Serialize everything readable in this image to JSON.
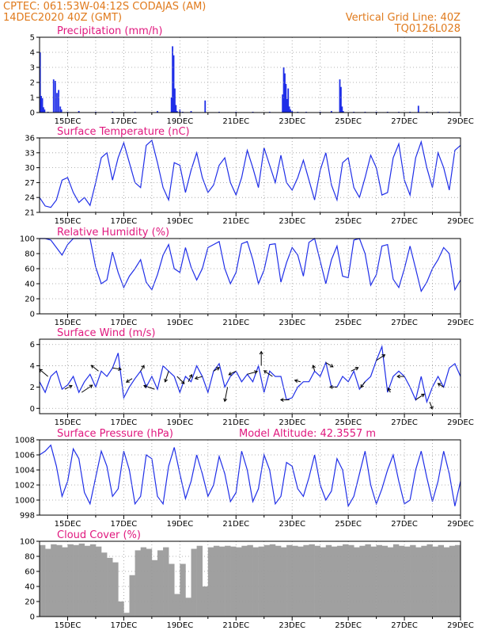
{
  "header": {
    "line1_left": "CPTEC:   061:53W-04:12S   CODAJAS (AM)",
    "line2_left": "14DEC2020 40Z (GMT)",
    "line2_right": "Vertical Grid Line: 40Z",
    "line3_right": "TQ0126L028"
  },
  "colors": {
    "header": "#e07a1c",
    "title": "#e0187e",
    "series": "#1f2ee8",
    "cloud": "#a0a0a0",
    "grid": "#9a9a9a"
  },
  "chart_data": [
    {
      "type": "bar",
      "title": "Precipitation (mm/h)",
      "xlabel": "",
      "ylabel": "",
      "xticks": [
        "15DEC",
        "17DEC",
        "19DEC",
        "21DEC",
        "23DEC",
        "25DEC",
        "27DEC",
        "29DEC"
      ],
      "xlim": [
        14.0,
        29.0
      ],
      "ylim": [
        0,
        5
      ],
      "yticks": [
        0,
        1,
        2,
        3,
        4,
        5
      ],
      "x": [
        14.02,
        14.06,
        14.1,
        14.14,
        14.18,
        14.3,
        14.5,
        14.56,
        14.62,
        14.68,
        14.74,
        14.78,
        15.0,
        15.4,
        16.0,
        16.6,
        17.4,
        18.2,
        18.7,
        18.74,
        18.78,
        18.82,
        18.86,
        18.9,
        19.0,
        19.1,
        19.4,
        19.9,
        20.4,
        21.0,
        21.6,
        22.2,
        22.66,
        22.7,
        22.74,
        22.78,
        22.82,
        22.86,
        22.9,
        22.94,
        23.0,
        23.2,
        23.5,
        24.0,
        24.4,
        24.7,
        24.74,
        24.78,
        24.82,
        25.2,
        25.6,
        26.0,
        26.4,
        26.8,
        27.2,
        27.5,
        27.8,
        28.2,
        28.6
      ],
      "values": [
        4.0,
        1.1,
        0.95,
        0.35,
        0.2,
        0.05,
        2.2,
        2.1,
        1.3,
        1.5,
        0.4,
        0.2,
        0.05,
        0.1,
        0.05,
        0.05,
        0.05,
        0.1,
        1.0,
        4.4,
        3.8,
        1.6,
        0.5,
        0.1,
        0.2,
        0.05,
        0.1,
        0.8,
        0.05,
        0.05,
        0.05,
        0.05,
        1.2,
        3.0,
        2.6,
        1.9,
        0.9,
        1.6,
        0.4,
        0.2,
        0.1,
        0.05,
        0.05,
        0.05,
        0.1,
        2.2,
        1.7,
        0.4,
        0.1,
        0.05,
        0.05,
        0.05,
        0.05,
        0.05,
        0.05,
        0.45,
        0.05,
        0.05,
        0.05
      ]
    },
    {
      "type": "line",
      "title": "Surface Temperature (nC)",
      "xlabel": "",
      "ylabel": "",
      "xticks": [
        "15DEC",
        "17DEC",
        "19DEC",
        "21DEC",
        "23DEC",
        "25DEC",
        "27DEC",
        "29DEC"
      ],
      "xlim": [
        14.0,
        29.0
      ],
      "ylim": [
        21,
        36
      ],
      "yticks": [
        21,
        24,
        27,
        30,
        33,
        36
      ],
      "x": [
        14.0,
        14.2,
        14.4,
        14.6,
        14.8,
        15.0,
        15.2,
        15.4,
        15.6,
        15.8,
        16.0,
        16.2,
        16.4,
        16.6,
        16.8,
        17.0,
        17.2,
        17.4,
        17.6,
        17.8,
        18.0,
        18.2,
        18.4,
        18.6,
        18.8,
        19.0,
        19.2,
        19.4,
        19.6,
        19.8,
        20.0,
        20.2,
        20.4,
        20.6,
        20.8,
        21.0,
        21.2,
        21.4,
        21.6,
        21.8,
        22.0,
        22.2,
        22.4,
        22.6,
        22.8,
        23.0,
        23.2,
        23.4,
        23.6,
        23.8,
        24.0,
        24.2,
        24.4,
        24.6,
        24.8,
        25.0,
        25.2,
        25.4,
        25.6,
        25.8,
        26.0,
        26.2,
        26.4,
        26.6,
        26.8,
        27.0,
        27.2,
        27.4,
        27.6,
        27.8,
        28.0,
        28.2,
        28.4,
        28.6,
        28.8,
        29.0
      ],
      "series": [
        {
          "name": "",
          "values": [
            24,
            22.3,
            22,
            23.5,
            27.5,
            28,
            25,
            23,
            24,
            22.4,
            27,
            32,
            33,
            27.5,
            32,
            35,
            31,
            27,
            26,
            34.5,
            35.5,
            31,
            26,
            23.5,
            31,
            30.5,
            25,
            29.5,
            33,
            28,
            25,
            26.5,
            30.5,
            32,
            27,
            24.5,
            28,
            33.5,
            30,
            26,
            34,
            30.5,
            27,
            32.5,
            27,
            25.5,
            28,
            31.5,
            27.5,
            23.5,
            29.5,
            33,
            26.5,
            23.5,
            31,
            32,
            26,
            24,
            28,
            32.5,
            30,
            24.5,
            25,
            32,
            34.8,
            27.5,
            24.5,
            32,
            35.2,
            30,
            26,
            33,
            30,
            25.5,
            33.5,
            34.5
          ]
        }
      ]
    },
    {
      "type": "line",
      "title": "Relative Humidity (%)",
      "xlabel": "",
      "ylabel": "",
      "xticks": [
        "15DEC",
        "17DEC",
        "19DEC",
        "21DEC",
        "23DEC",
        "25DEC",
        "27DEC",
        "29DEC"
      ],
      "xlim": [
        14.0,
        29.0
      ],
      "ylim": [
        0,
        100
      ],
      "yticks": [
        0,
        20,
        40,
        60,
        80,
        100
      ],
      "x": [
        14.0,
        14.2,
        14.4,
        14.6,
        14.8,
        15.0,
        15.2,
        15.4,
        15.6,
        15.8,
        16.0,
        16.2,
        16.4,
        16.6,
        16.8,
        17.0,
        17.2,
        17.4,
        17.6,
        17.8,
        18.0,
        18.2,
        18.4,
        18.6,
        18.8,
        19.0,
        19.2,
        19.4,
        19.6,
        19.8,
        20.0,
        20.2,
        20.4,
        20.6,
        20.8,
        21.0,
        21.2,
        21.4,
        21.6,
        21.8,
        22.0,
        22.2,
        22.4,
        22.6,
        22.8,
        23.0,
        23.2,
        23.4,
        23.6,
        23.8,
        24.0,
        24.2,
        24.4,
        24.6,
        24.8,
        25.0,
        25.2,
        25.4,
        25.6,
        25.8,
        26.0,
        26.2,
        26.4,
        26.6,
        26.8,
        27.0,
        27.2,
        27.4,
        27.6,
        27.8,
        28.0,
        28.2,
        28.4,
        28.6,
        28.8,
        29.0
      ],
      "series": [
        {
          "name": "",
          "values": [
            100,
            100,
            98,
            88,
            78,
            92,
            100,
            100,
            100,
            100,
            62,
            40,
            45,
            82,
            55,
            35,
            50,
            60,
            72,
            42,
            32,
            52,
            78,
            92,
            60,
            55,
            88,
            62,
            45,
            60,
            88,
            92,
            96,
            60,
            40,
            55,
            93,
            96,
            72,
            40,
            58,
            92,
            93,
            42,
            68,
            88,
            78,
            50,
            95,
            100,
            70,
            40,
            72,
            90,
            50,
            48,
            98,
            100,
            80,
            38,
            52,
            90,
            92,
            46,
            35,
            60,
            90,
            60,
            30,
            42,
            60,
            72,
            88,
            80,
            32,
            45
          ]
        }
      ]
    },
    {
      "type": "line",
      "title": "Surface Wind (m/s)",
      "xlabel": "",
      "ylabel": "",
      "xticks": [
        "15DEC",
        "17DEC",
        "19DEC",
        "21DEC",
        "23DEC",
        "25DEC",
        "27DEC",
        "29DEC"
      ],
      "xlim": [
        14.0,
        29.0
      ],
      "ylim": [
        -0.5,
        6.5
      ],
      "yticks": [
        0,
        2,
        4,
        6
      ],
      "x": [
        14.0,
        14.2,
        14.4,
        14.6,
        14.8,
        15.0,
        15.2,
        15.4,
        15.6,
        15.8,
        16.0,
        16.2,
        16.4,
        16.6,
        16.8,
        17.0,
        17.2,
        17.4,
        17.6,
        17.8,
        18.0,
        18.2,
        18.4,
        18.6,
        18.8,
        19.0,
        19.2,
        19.4,
        19.6,
        19.8,
        20.0,
        20.2,
        20.4,
        20.6,
        20.8,
        21.0,
        21.2,
        21.4,
        21.6,
        21.8,
        22.0,
        22.2,
        22.4,
        22.6,
        22.8,
        23.0,
        23.2,
        23.4,
        23.6,
        23.8,
        24.0,
        24.2,
        24.4,
        24.6,
        24.8,
        25.0,
        25.2,
        25.4,
        25.6,
        25.8,
        26.0,
        26.2,
        26.4,
        26.6,
        26.8,
        27.0,
        27.2,
        27.4,
        27.6,
        27.8,
        28.0,
        28.2,
        28.4,
        28.6,
        28.8,
        29.0
      ],
      "series": [
        {
          "name": "",
          "values": [
            2.5,
            1.5,
            3.0,
            3.5,
            1.8,
            2.2,
            3.0,
            1.5,
            2.5,
            3.2,
            2.0,
            3.5,
            3.0,
            3.8,
            5.2,
            1.0,
            2.0,
            2.8,
            3.5,
            2.0,
            3.0,
            1.8,
            4.0,
            3.5,
            3.0,
            1.5,
            3.0,
            2.5,
            4.0,
            3.0,
            1.5,
            3.5,
            4.2,
            2.0,
            3.0,
            3.5,
            2.5,
            3.2,
            2.5,
            4.0,
            1.5,
            3.5,
            3.0,
            3.0,
            0.8,
            1.0,
            2.0,
            2.5,
            2.5,
            3.5,
            3.0,
            4.3,
            2.0,
            2.0,
            3.0,
            2.5,
            3.5,
            1.8,
            2.5,
            3.0,
            4.5,
            5.8,
            1.5,
            3.0,
            3.5,
            3.0,
            2.0,
            0.8,
            3.0,
            0.6,
            2.0,
            3.0,
            2.0,
            3.8,
            4.2,
            3.0
          ]
        }
      ],
      "vectors": {
        "x": [
          14.3,
          14.9,
          15.5,
          16.1,
          16.6,
          17.3,
          17.6,
          18.1,
          18.6,
          18.9,
          19.3,
          19.8,
          20.2,
          20.7,
          21.0,
          21.4,
          21.9,
          22.3,
          22.9,
          23.3,
          23.8,
          24.2,
          24.6,
          25.1,
          25.6,
          26.0,
          26.5,
          27.0,
          27.4,
          27.9,
          28.4
        ],
        "u": [
          -1.2,
          1.0,
          1.5,
          -1.0,
          1.2,
          -0.8,
          0.5,
          -1.5,
          -0.5,
          1.0,
          0.5,
          -1.0,
          0.8,
          -0.4,
          -1.0,
          1.4,
          0.0,
          -1.2,
          -1.2,
          -0.8,
          -0.2,
          1.0,
          -1.0,
          1.0,
          -0.6,
          1.2,
          -0.3,
          -1.0,
          1.2,
          0.4,
          -0.8
        ],
        "v": [
          1.0,
          0.5,
          1.0,
          0.8,
          -0.2,
          -0.5,
          0.8,
          0.5,
          -1.5,
          -1.0,
          1.0,
          -0.3,
          0.5,
          -2.0,
          -0.5,
          0.4,
          2.0,
          0.8,
          0.0,
          0.2,
          0.8,
          -0.6,
          0.0,
          0.5,
          -0.8,
          0.8,
          0.6,
          0.0,
          0.8,
          -1.0,
          0.5
        ]
      }
    },
    {
      "type": "line",
      "title": "Surface Pressure (hPa)",
      "annotation": "Model Altitude: 42.3557 m",
      "xlabel": "",
      "ylabel": "",
      "xticks": [
        "15DEC",
        "17DEC",
        "19DEC",
        "21DEC",
        "23DEC",
        "25DEC",
        "27DEC",
        "29DEC"
      ],
      "xlim": [
        14.0,
        29.0
      ],
      "ylim": [
        998,
        1008
      ],
      "yticks": [
        998,
        1000,
        1002,
        1004,
        1006,
        1008
      ],
      "x": [
        14.0,
        14.2,
        14.4,
        14.6,
        14.8,
        15.0,
        15.2,
        15.4,
        15.6,
        15.8,
        16.0,
        16.2,
        16.4,
        16.6,
        16.8,
        17.0,
        17.2,
        17.4,
        17.6,
        17.8,
        18.0,
        18.2,
        18.4,
        18.6,
        18.8,
        19.0,
        19.2,
        19.4,
        19.6,
        19.8,
        20.0,
        20.2,
        20.4,
        20.6,
        20.8,
        21.0,
        21.2,
        21.4,
        21.6,
        21.8,
        22.0,
        22.2,
        22.4,
        22.6,
        22.8,
        23.0,
        23.2,
        23.4,
        23.6,
        23.8,
        24.0,
        24.2,
        24.4,
        24.6,
        24.8,
        25.0,
        25.2,
        25.4,
        25.6,
        25.8,
        26.0,
        26.2,
        26.4,
        26.6,
        26.8,
        27.0,
        27.2,
        27.4,
        27.6,
        27.8,
        28.0,
        28.2,
        28.4,
        28.6,
        28.8,
        29.0
      ],
      "series": [
        {
          "name": "",
          "values": [
            1006,
            1006.5,
            1007.3,
            1004.5,
            1000.5,
            1002.5,
            1006.8,
            1005.5,
            1001,
            999.5,
            1003,
            1006.5,
            1004.5,
            1000.5,
            1001.5,
            1006.5,
            1004,
            999.5,
            1000.5,
            1006,
            1005.5,
            1000.5,
            999.5,
            1004.5,
            1007,
            1003.5,
            1000.2,
            1002.5,
            1006,
            1003.5,
            1000.5,
            1002,
            1005.8,
            1003.5,
            999.8,
            1001,
            1006.5,
            1004,
            999.8,
            1001.5,
            1006,
            1004,
            999.5,
            1000.5,
            1005,
            1004.5,
            1001.5,
            1000.5,
            1003,
            1006,
            1002,
            1000,
            1001.2,
            1005.5,
            1004,
            999.2,
            1000.5,
            1003.5,
            1006.5,
            1002,
            999.5,
            1001.5,
            1004,
            1006,
            1002.5,
            999.5,
            1000,
            1004,
            1006.5,
            1003,
            999.8,
            1002.5,
            1006.5,
            1003.5,
            999.2,
            1002.5
          ]
        }
      ]
    },
    {
      "type": "area",
      "title": "Cloud Cover (%)",
      "xlabel": "",
      "ylabel": "",
      "xticks": [
        "15DEC",
        "17DEC",
        "19DEC",
        "21DEC",
        "23DEC",
        "25DEC",
        "27DEC",
        "29DEC"
      ],
      "xlim": [
        14.0,
        29.0
      ],
      "ylim": [
        0,
        100
      ],
      "yticks": [
        0,
        20,
        40,
        60,
        80,
        100
      ],
      "x": [
        14.0,
        14.2,
        14.4,
        14.6,
        14.8,
        15.0,
        15.2,
        15.4,
        15.6,
        15.8,
        16.0,
        16.2,
        16.4,
        16.6,
        16.8,
        17.0,
        17.2,
        17.4,
        17.6,
        17.8,
        18.0,
        18.2,
        18.4,
        18.6,
        18.8,
        19.0,
        19.2,
        19.4,
        19.6,
        19.8,
        20.0,
        20.2,
        20.4,
        20.6,
        20.8,
        21.0,
        21.2,
        21.4,
        21.6,
        21.8,
        22.0,
        22.2,
        22.4,
        22.6,
        22.8,
        23.0,
        23.2,
        23.4,
        23.6,
        23.8,
        24.0,
        24.2,
        24.4,
        24.6,
        24.8,
        25.0,
        25.2,
        25.4,
        25.6,
        25.8,
        26.0,
        26.2,
        26.4,
        26.6,
        26.8,
        27.0,
        27.2,
        27.4,
        27.6,
        27.8,
        28.0,
        28.2,
        28.4,
        28.6,
        28.8,
        29.0
      ],
      "series": [
        {
          "name": "",
          "values": [
            95,
            90,
            96,
            95,
            92,
            96,
            95,
            97,
            94,
            96,
            93,
            85,
            78,
            72,
            20,
            5,
            55,
            88,
            92,
            90,
            75,
            88,
            92,
            70,
            30,
            70,
            25,
            90,
            94,
            40,
            92,
            94,
            93,
            94,
            93,
            92,
            94,
            95,
            92,
            93,
            95,
            96,
            94,
            92,
            95,
            94,
            93,
            95,
            96,
            94,
            92,
            95,
            93,
            94,
            96,
            95,
            92,
            94,
            96,
            93,
            95,
            94,
            92,
            96,
            94,
            93,
            95,
            92,
            94,
            96,
            93,
            95,
            92,
            94,
            95,
            93
          ]
        }
      ]
    }
  ]
}
